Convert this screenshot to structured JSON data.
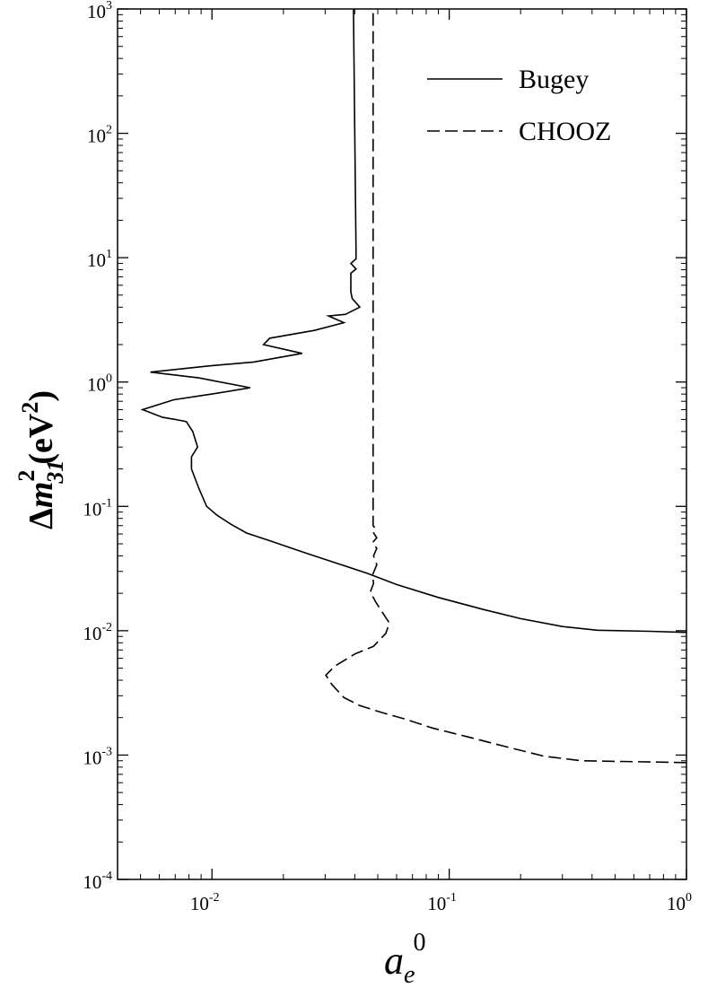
{
  "chart_data": {
    "type": "line",
    "title": "",
    "xscale": "log",
    "yscale": "log",
    "xlim": [
      0.004,
      1.0
    ],
    "ylim": [
      0.0001,
      1000
    ],
    "grid": false,
    "legend_position": "top-right",
    "xlabel": {
      "base": "a",
      "subscript": "e",
      "superscript": "0"
    },
    "ylabel": {
      "prefix": "Δ",
      "var": "m",
      "subscript": "31",
      "superscript": "2",
      "units_open": "(eV",
      "units_sup": "2",
      "units_close": ")"
    },
    "x_ticks": [
      {
        "value": 0.01,
        "base": "10",
        "exp": "-2"
      },
      {
        "value": 0.1,
        "base": "10",
        "exp": "-1"
      },
      {
        "value": 1,
        "base": "10",
        "exp": "0"
      }
    ],
    "y_ticks": [
      {
        "value": 0.0001,
        "base": "10",
        "exp": "-4"
      },
      {
        "value": 0.001,
        "base": "10",
        "exp": "-3"
      },
      {
        "value": 0.01,
        "base": "10",
        "exp": "-2"
      },
      {
        "value": 0.1,
        "base": "10",
        "exp": "-1"
      },
      {
        "value": 1,
        "base": "10",
        "exp": "0"
      },
      {
        "value": 10,
        "base": "10",
        "exp": "1"
      },
      {
        "value": 100,
        "base": "10",
        "exp": "2"
      },
      {
        "value": 1000,
        "base": "10",
        "exp": "3"
      }
    ],
    "series": [
      {
        "name": "Bugey",
        "style": "solid",
        "color": "#000000",
        "points": [
          [
            1.0,
            0.0097
          ],
          [
            0.7,
            0.0099
          ],
          [
            0.42,
            0.0101
          ],
          [
            0.3,
            0.0108
          ],
          [
            0.2,
            0.0125
          ],
          [
            0.14,
            0.0148
          ],
          [
            0.09,
            0.0185
          ],
          [
            0.06,
            0.0235
          ],
          [
            0.045,
            0.029
          ],
          [
            0.035,
            0.034
          ],
          [
            0.025,
            0.042
          ],
          [
            0.018,
            0.052
          ],
          [
            0.014,
            0.061
          ],
          [
            0.012,
            0.072
          ],
          [
            0.0105,
            0.085
          ],
          [
            0.0095,
            0.1
          ],
          [
            0.0088,
            0.14
          ],
          [
            0.0082,
            0.2
          ],
          [
            0.0082,
            0.25
          ],
          [
            0.0087,
            0.3
          ],
          [
            0.0083,
            0.4
          ],
          [
            0.0078,
            0.48
          ],
          [
            0.007,
            0.5
          ],
          [
            0.0062,
            0.52
          ],
          [
            0.0051,
            0.6
          ],
          [
            0.0069,
            0.72
          ],
          [
            0.01,
            0.8
          ],
          [
            0.0145,
            0.9
          ],
          [
            0.0088,
            1.08
          ],
          [
            0.0055,
            1.2
          ],
          [
            0.0098,
            1.35
          ],
          [
            0.015,
            1.45
          ],
          [
            0.024,
            1.7
          ],
          [
            0.0165,
            2.0
          ],
          [
            0.0175,
            2.25
          ],
          [
            0.027,
            2.6
          ],
          [
            0.036,
            3.0
          ],
          [
            0.031,
            3.4
          ],
          [
            0.0365,
            3.5
          ],
          [
            0.042,
            4.0
          ],
          [
            0.039,
            4.7
          ],
          [
            0.0385,
            5.3
          ],
          [
            0.0385,
            7.5
          ],
          [
            0.0405,
            8.1
          ],
          [
            0.0385,
            9.0
          ],
          [
            0.0405,
            9.8
          ],
          [
            0.0405,
            10.5
          ],
          [
            0.0395,
            1000
          ]
        ]
      },
      {
        "name": "CHOOZ",
        "style": "dashed",
        "color": "#000000",
        "points": [
          [
            1.0,
            0.00087
          ],
          [
            0.7,
            0.00088
          ],
          [
            0.5,
            0.00089
          ],
          [
            0.36,
            0.0009
          ],
          [
            0.25,
            0.00098
          ],
          [
            0.17,
            0.00118
          ],
          [
            0.12,
            0.0014
          ],
          [
            0.085,
            0.00165
          ],
          [
            0.065,
            0.00195
          ],
          [
            0.052,
            0.0022
          ],
          [
            0.042,
            0.0025
          ],
          [
            0.036,
            0.0029
          ],
          [
            0.032,
            0.0037
          ],
          [
            0.0302,
            0.0044
          ],
          [
            0.033,
            0.0052
          ],
          [
            0.04,
            0.0065
          ],
          [
            0.048,
            0.0075
          ],
          [
            0.054,
            0.0095
          ],
          [
            0.056,
            0.0115
          ],
          [
            0.053,
            0.0135
          ],
          [
            0.049,
            0.017
          ],
          [
            0.0465,
            0.0205
          ],
          [
            0.048,
            0.024
          ],
          [
            0.0475,
            0.028
          ],
          [
            0.0495,
            0.034
          ],
          [
            0.048,
            0.04
          ],
          [
            0.0495,
            0.046
          ],
          [
            0.0475,
            0.051
          ],
          [
            0.0495,
            0.056
          ],
          [
            0.048,
            0.061
          ],
          [
            0.049,
            0.066
          ],
          [
            0.0478,
            0.07
          ],
          [
            0.0478,
            1000
          ]
        ]
      }
    ]
  }
}
